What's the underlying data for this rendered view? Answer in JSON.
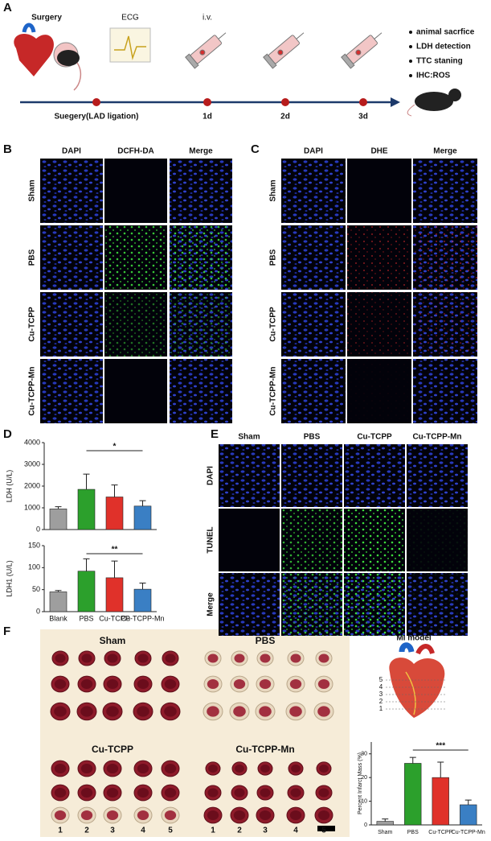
{
  "panel_a": {
    "label": "A",
    "steps": [
      "Surgery",
      "ECG",
      "i.v."
    ],
    "outcomes": [
      "animal sacrfice",
      "LDH detection",
      "TTC staning",
      "IHC:ROS"
    ],
    "timeline": [
      "Suegery(LAD ligation)",
      "1d",
      "2d",
      "3d"
    ]
  },
  "panel_b": {
    "label": "B",
    "columns": [
      "DAPI",
      "DCFH-DA",
      "Merge"
    ],
    "rows": [
      "Sham",
      "PBS",
      "Cu-TCPP",
      "Cu-TCPP-Mn"
    ]
  },
  "panel_c": {
    "label": "C",
    "columns": [
      "DAPI",
      "DHE",
      "Merge"
    ],
    "rows": [
      "Sham",
      "PBS",
      "Cu-TCPP",
      "Cu-TCPP-Mn"
    ]
  },
  "panel_d": {
    "label": "D"
  },
  "panel_e": {
    "label": "E",
    "columns": [
      "Sham",
      "PBS",
      "Cu-TCPP",
      "Cu-TCPP-Mn"
    ],
    "rows": [
      "DAPI",
      "TUNEL",
      "Merge"
    ]
  },
  "panel_f": {
    "label": "F",
    "groups": [
      "Sham",
      "PBS",
      "Cu-TCPP",
      "Cu-TCPP-Mn"
    ],
    "samples": [
      "1",
      "2",
      "3",
      "4",
      "5"
    ],
    "model_title": "MI model",
    "levels": [
      "5",
      "4",
      "3",
      "2",
      "1"
    ]
  },
  "chart_data": [
    {
      "type": "bar",
      "y_label": "LDH (U/L)",
      "values": [
        950,
        1850,
        1500,
        1080
      ],
      "errors": [
        100,
        700,
        550,
        250
      ],
      "colors": [
        "#9e9e9e",
        "#2ca02c",
        "#e0312a",
        "#3a7fc4"
      ],
      "ylim": [
        0,
        4000
      ],
      "yticks": [
        0,
        1000,
        2000,
        3000,
        4000
      ],
      "annotation": "*"
    },
    {
      "type": "bar",
      "y_label": "LDH1 (U/L)",
      "categories": [
        "Blank",
        "PBS",
        "Cu-TCPP",
        "Cu-TCPP-Mn"
      ],
      "values": [
        45,
        92,
        77,
        51
      ],
      "errors": [
        3,
        28,
        38,
        14
      ],
      "colors": [
        "#9e9e9e",
        "#2ca02c",
        "#e0312a",
        "#3a7fc4"
      ],
      "ylim": [
        0,
        150
      ],
      "yticks": [
        0,
        50,
        100,
        150
      ],
      "annotation": "**"
    },
    {
      "type": "bar",
      "y_label": "Percent Infarct Mass (%)",
      "categories": [
        "Sham",
        "PBS",
        "Cu-TCPP",
        "Cu-TCPP-Mn"
      ],
      "values": [
        1.5,
        26,
        20,
        8.5
      ],
      "errors": [
        1,
        2.5,
        6.5,
        2
      ],
      "colors": [
        "#9e9e9e",
        "#2ca02c",
        "#e0312a",
        "#3a7fc4"
      ],
      "ylim": [
        0,
        35
      ],
      "yticks": [
        0,
        10,
        20,
        30
      ],
      "annotation": "***"
    }
  ]
}
